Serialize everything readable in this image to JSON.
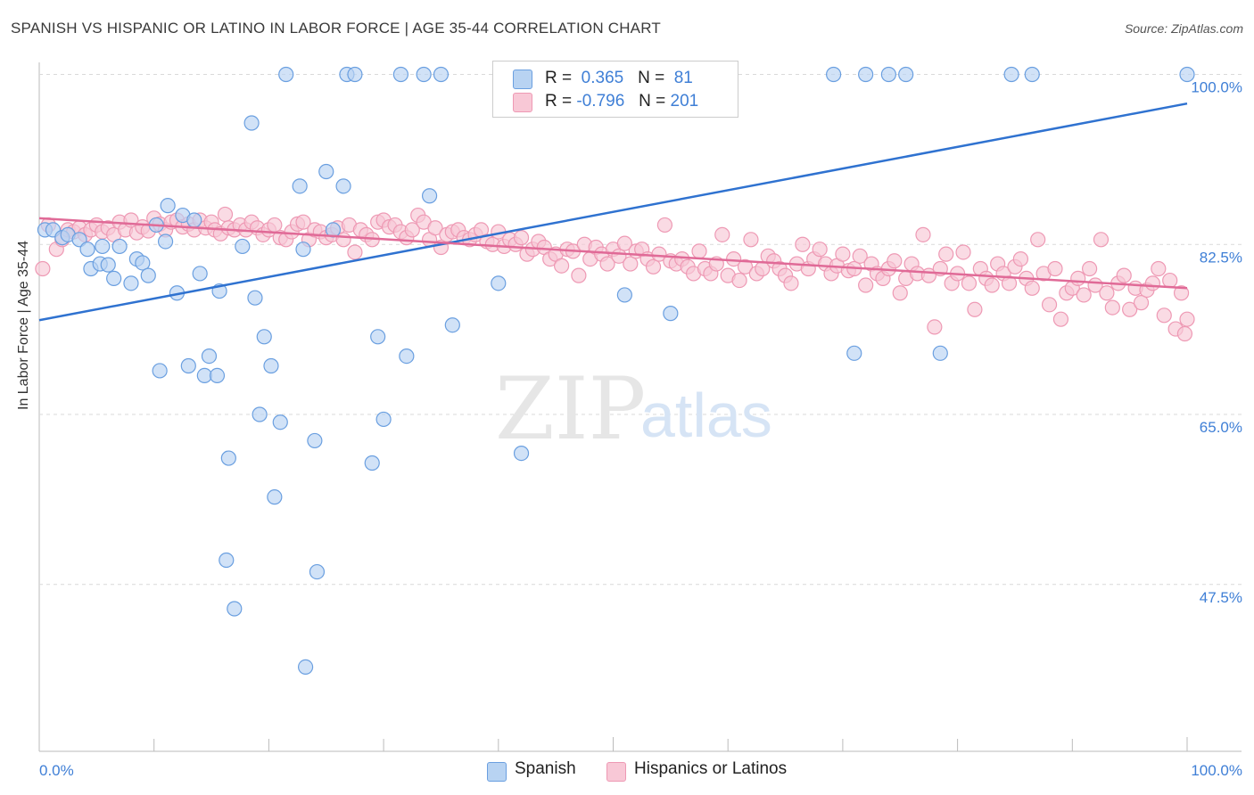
{
  "header": {
    "title": "SPANISH VS HISPANIC OR LATINO IN LABOR FORCE | AGE 35-44 CORRELATION CHART",
    "source": "Source: ZipAtlas.com"
  },
  "watermark": {
    "zip": "ZIP",
    "atlas": "atlas"
  },
  "legend": {
    "rows": [
      {
        "r_label": "R =",
        "r_value": "0.365",
        "n_label": "N =",
        "n_value": "81"
      },
      {
        "r_label": "R =",
        "r_value": "-0.796",
        "n_label": "N =",
        "n_value": "201"
      }
    ],
    "bottom": [
      "Spanish",
      "Hispanics or Latinos"
    ]
  },
  "colors": {
    "spanish_fill": "#b8d3f2",
    "spanish_stroke": "#6a9fe0",
    "spanish_line": "#2f72d0",
    "hispanic_fill": "#f8c8d6",
    "hispanic_stroke": "#ee99b4",
    "hispanic_line": "#e06a97",
    "axis_text": "#3f7fd6"
  },
  "chart_data": {
    "type": "scatter",
    "title": "SPANISH VS HISPANIC OR LATINO IN LABOR FORCE | AGE 35-44 CORRELATION CHART",
    "xlabel": "",
    "ylabel": "In Labor Force | Age 35-44",
    "xlim": [
      0,
      100
    ],
    "ylim": [
      35,
      102
    ],
    "x_tick_labels": [
      "0.0%",
      "100.0%"
    ],
    "y_ticks": [
      100,
      82.5,
      65,
      47.5
    ],
    "y_tick_labels": [
      "100.0%",
      "82.5%",
      "65.0%",
      "47.5%"
    ],
    "grid": "dashed horizontal",
    "legend_position": "top-center",
    "series": [
      {
        "name": "Spanish",
        "R": 0.365,
        "N": 81,
        "trend": {
          "x": [
            0,
            100
          ],
          "y": [
            74.7,
            97.0
          ]
        },
        "points": [
          [
            0.5,
            84.0
          ],
          [
            1.2,
            84.0
          ],
          [
            2.0,
            83.2
          ],
          [
            2.5,
            83.5
          ],
          [
            3.5,
            83.0
          ],
          [
            4.2,
            82.0
          ],
          [
            4.5,
            80.0
          ],
          [
            5.5,
            82.3
          ],
          [
            5.3,
            80.5
          ],
          [
            6.0,
            80.4
          ],
          [
            7.0,
            82.3
          ],
          [
            6.5,
            79.0
          ],
          [
            8.0,
            78.5
          ],
          [
            8.5,
            81.0
          ],
          [
            9.0,
            80.6
          ],
          [
            9.5,
            79.3
          ],
          [
            10.2,
            84.5
          ],
          [
            10.5,
            69.5
          ],
          [
            11.0,
            82.8
          ],
          [
            11.2,
            86.5
          ],
          [
            12.0,
            77.5
          ],
          [
            12.5,
            85.5
          ],
          [
            13.0,
            70.0
          ],
          [
            13.5,
            85.0
          ],
          [
            14.0,
            79.5
          ],
          [
            14.4,
            69.0
          ],
          [
            14.8,
            71.0
          ],
          [
            15.5,
            69.0
          ],
          [
            15.7,
            77.7
          ],
          [
            16.5,
            60.5
          ],
          [
            16.3,
            50.0
          ],
          [
            17.0,
            45.0
          ],
          [
            17.7,
            82.3
          ],
          [
            18.5,
            95.0
          ],
          [
            18.8,
            77.0
          ],
          [
            19.2,
            65.0
          ],
          [
            19.6,
            73.0
          ],
          [
            20.2,
            70.0
          ],
          [
            20.5,
            56.5
          ],
          [
            21.0,
            64.2
          ],
          [
            21.5,
            100
          ],
          [
            22.7,
            88.5
          ],
          [
            23.0,
            82.0
          ],
          [
            23.2,
            39.0
          ],
          [
            24.0,
            62.3
          ],
          [
            24.2,
            48.8
          ],
          [
            25.0,
            90.0
          ],
          [
            25.6,
            84.0
          ],
          [
            26.5,
            88.5
          ],
          [
            26.8,
            100
          ],
          [
            27.5,
            100
          ],
          [
            29.0,
            60.0
          ],
          [
            29.5,
            73.0
          ],
          [
            30.0,
            64.5
          ],
          [
            31.5,
            100
          ],
          [
            32.0,
            71.0
          ],
          [
            33.5,
            100
          ],
          [
            34.0,
            87.5
          ],
          [
            35.0,
            100
          ],
          [
            36.0,
            74.2
          ],
          [
            40.0,
            78.5
          ],
          [
            42.0,
            61.0
          ],
          [
            47.5,
            97.0
          ],
          [
            48.5,
            100
          ],
          [
            51.0,
            77.3
          ],
          [
            55.0,
            75.4
          ],
          [
            55.8,
            97.0
          ],
          [
            56.5,
            100
          ],
          [
            69.2,
            100
          ],
          [
            71.0,
            71.3
          ],
          [
            72.0,
            100
          ],
          [
            74.0,
            100
          ],
          [
            75.5,
            100
          ],
          [
            78.5,
            71.3
          ],
          [
            84.7,
            100
          ],
          [
            86.5,
            100
          ],
          [
            100,
            100
          ]
        ]
      },
      {
        "name": "Hispanics or Latinos",
        "R": -0.796,
        "N": 201,
        "trend": {
          "x": [
            0,
            100
          ],
          "y": [
            85.2,
            78.0
          ]
        },
        "points": [
          [
            0.3,
            80.0
          ],
          [
            0.8,
            84.5
          ],
          [
            1.5,
            82.0
          ],
          [
            2.0,
            83.0
          ],
          [
            2.5,
            84.0
          ],
          [
            3.0,
            83.8
          ],
          [
            3.5,
            84.2
          ],
          [
            4.0,
            83.5
          ],
          [
            4.5,
            84.0
          ],
          [
            5.0,
            84.5
          ],
          [
            5.5,
            83.8
          ],
          [
            6.0,
            84.2
          ],
          [
            6.5,
            83.5
          ],
          [
            7.0,
            84.8
          ],
          [
            7.5,
            84.0
          ],
          [
            8.0,
            85.0
          ],
          [
            8.5,
            83.7
          ],
          [
            9.0,
            84.3
          ],
          [
            9.5,
            83.9
          ],
          [
            10.0,
            85.2
          ],
          [
            10.5,
            84.6
          ],
          [
            11.0,
            84.0
          ],
          [
            11.5,
            84.8
          ],
          [
            12.0,
            85.0
          ],
          [
            12.5,
            84.3
          ],
          [
            13.0,
            84.6
          ],
          [
            13.5,
            84.0
          ],
          [
            14.0,
            85.0
          ],
          [
            14.5,
            84.2
          ],
          [
            15.0,
            84.8
          ],
          [
            15.3,
            84.0
          ],
          [
            15.8,
            83.6
          ],
          [
            16.2,
            85.6
          ],
          [
            16.5,
            84.2
          ],
          [
            17.0,
            84.0
          ],
          [
            17.5,
            84.5
          ],
          [
            18.0,
            84.0
          ],
          [
            18.5,
            84.8
          ],
          [
            19.0,
            84.2
          ],
          [
            19.5,
            83.5
          ],
          [
            20.0,
            84.0
          ],
          [
            20.5,
            84.5
          ],
          [
            21.0,
            83.2
          ],
          [
            21.5,
            83.0
          ],
          [
            22.0,
            83.8
          ],
          [
            22.5,
            84.6
          ],
          [
            23.0,
            84.8
          ],
          [
            23.5,
            83.0
          ],
          [
            24.0,
            84.0
          ],
          [
            24.5,
            83.8
          ],
          [
            25.0,
            83.2
          ],
          [
            25.5,
            83.5
          ],
          [
            26.0,
            84.2
          ],
          [
            26.5,
            83.0
          ],
          [
            27.0,
            84.5
          ],
          [
            27.5,
            81.7
          ],
          [
            28.0,
            84.0
          ],
          [
            28.5,
            83.5
          ],
          [
            29.0,
            83.0
          ],
          [
            29.5,
            84.8
          ],
          [
            30.0,
            85.0
          ],
          [
            30.5,
            84.3
          ],
          [
            31.0,
            84.5
          ],
          [
            31.5,
            83.8
          ],
          [
            32.0,
            83.2
          ],
          [
            32.5,
            84.0
          ],
          [
            33.0,
            85.5
          ],
          [
            33.5,
            84.8
          ],
          [
            34.0,
            83.0
          ],
          [
            34.5,
            84.2
          ],
          [
            35.0,
            82.2
          ],
          [
            35.5,
            83.5
          ],
          [
            36.0,
            83.8
          ],
          [
            36.5,
            84.0
          ],
          [
            37.0,
            83.2
          ],
          [
            37.5,
            83.0
          ],
          [
            38.0,
            83.5
          ],
          [
            38.5,
            84.0
          ],
          [
            39.0,
            82.8
          ],
          [
            39.5,
            82.5
          ],
          [
            40.0,
            83.8
          ],
          [
            40.5,
            82.3
          ],
          [
            41.0,
            83.0
          ],
          [
            41.5,
            82.5
          ],
          [
            42.0,
            83.2
          ],
          [
            42.5,
            81.5
          ],
          [
            43.0,
            82.0
          ],
          [
            43.5,
            82.8
          ],
          [
            44.0,
            82.2
          ],
          [
            44.5,
            81.0
          ],
          [
            45.0,
            81.5
          ],
          [
            45.5,
            80.3
          ],
          [
            46.0,
            82.0
          ],
          [
            46.5,
            81.8
          ],
          [
            47.0,
            79.3
          ],
          [
            47.5,
            82.5
          ],
          [
            48.0,
            81.0
          ],
          [
            48.5,
            82.2
          ],
          [
            49.0,
            81.5
          ],
          [
            49.5,
            80.5
          ],
          [
            50.0,
            82.0
          ],
          [
            50.5,
            81.3
          ],
          [
            51.0,
            82.6
          ],
          [
            51.5,
            80.5
          ],
          [
            52.0,
            81.8
          ],
          [
            52.5,
            82.0
          ],
          [
            53.0,
            81.0
          ],
          [
            53.5,
            80.2
          ],
          [
            54.0,
            81.5
          ],
          [
            54.5,
            84.5
          ],
          [
            55.0,
            80.8
          ],
          [
            55.5,
            80.5
          ],
          [
            56.0,
            81.0
          ],
          [
            56.5,
            80.2
          ],
          [
            57.0,
            79.5
          ],
          [
            57.5,
            81.8
          ],
          [
            58.0,
            80.0
          ],
          [
            58.5,
            79.5
          ],
          [
            59.0,
            80.5
          ],
          [
            59.5,
            83.5
          ],
          [
            60.0,
            79.3
          ],
          [
            60.5,
            81.0
          ],
          [
            61.0,
            78.8
          ],
          [
            61.5,
            80.2
          ],
          [
            62.0,
            83.0
          ],
          [
            62.5,
            79.5
          ],
          [
            63.0,
            80.0
          ],
          [
            63.5,
            81.3
          ],
          [
            64.0,
            80.8
          ],
          [
            64.5,
            80.0
          ],
          [
            65.0,
            79.3
          ],
          [
            65.5,
            78.5
          ],
          [
            66.0,
            80.5
          ],
          [
            66.5,
            82.5
          ],
          [
            67.0,
            80.0
          ],
          [
            67.5,
            81.0
          ],
          [
            68.0,
            82.0
          ],
          [
            68.5,
            80.5
          ],
          [
            69.0,
            79.5
          ],
          [
            69.5,
            80.3
          ],
          [
            70.0,
            81.5
          ],
          [
            70.5,
            79.8
          ],
          [
            71.0,
            80.0
          ],
          [
            71.5,
            81.3
          ],
          [
            72.0,
            78.3
          ],
          [
            72.5,
            80.5
          ],
          [
            73.0,
            79.5
          ],
          [
            73.5,
            79.0
          ],
          [
            74.0,
            80.0
          ],
          [
            74.5,
            80.8
          ],
          [
            75.0,
            77.5
          ],
          [
            75.5,
            79.0
          ],
          [
            76.0,
            80.5
          ],
          [
            76.5,
            79.5
          ],
          [
            77.0,
            83.5
          ],
          [
            77.5,
            79.3
          ],
          [
            78.0,
            74.0
          ],
          [
            78.5,
            80.0
          ],
          [
            79.0,
            81.5
          ],
          [
            79.5,
            78.5
          ],
          [
            80.0,
            79.5
          ],
          [
            80.5,
            81.7
          ],
          [
            81.0,
            78.5
          ],
          [
            81.5,
            75.8
          ],
          [
            82.0,
            80.0
          ],
          [
            82.5,
            79.0
          ],
          [
            83.0,
            78.3
          ],
          [
            83.5,
            80.5
          ],
          [
            84.0,
            79.5
          ],
          [
            84.5,
            78.5
          ],
          [
            85.0,
            80.2
          ],
          [
            85.5,
            81.0
          ],
          [
            86.0,
            79.0
          ],
          [
            86.5,
            78.0
          ],
          [
            87.0,
            83.0
          ],
          [
            87.5,
            79.5
          ],
          [
            88.0,
            76.3
          ],
          [
            88.5,
            80.0
          ],
          [
            89.0,
            74.8
          ],
          [
            89.5,
            77.5
          ],
          [
            90.0,
            78.0
          ],
          [
            90.5,
            79.0
          ],
          [
            91.0,
            77.3
          ],
          [
            91.5,
            80.0
          ],
          [
            92.0,
            78.3
          ],
          [
            92.5,
            83.0
          ],
          [
            93.0,
            77.5
          ],
          [
            93.5,
            76.0
          ],
          [
            94.0,
            78.5
          ],
          [
            94.5,
            79.3
          ],
          [
            95.0,
            75.8
          ],
          [
            95.5,
            78.0
          ],
          [
            96.0,
            76.5
          ],
          [
            96.5,
            77.8
          ],
          [
            97.0,
            78.5
          ],
          [
            97.5,
            80.0
          ],
          [
            98.0,
            75.2
          ],
          [
            98.5,
            78.8
          ],
          [
            99.0,
            73.8
          ],
          [
            99.5,
            77.5
          ],
          [
            100,
            74.8
          ],
          [
            99.8,
            73.3
          ]
        ]
      }
    ]
  }
}
